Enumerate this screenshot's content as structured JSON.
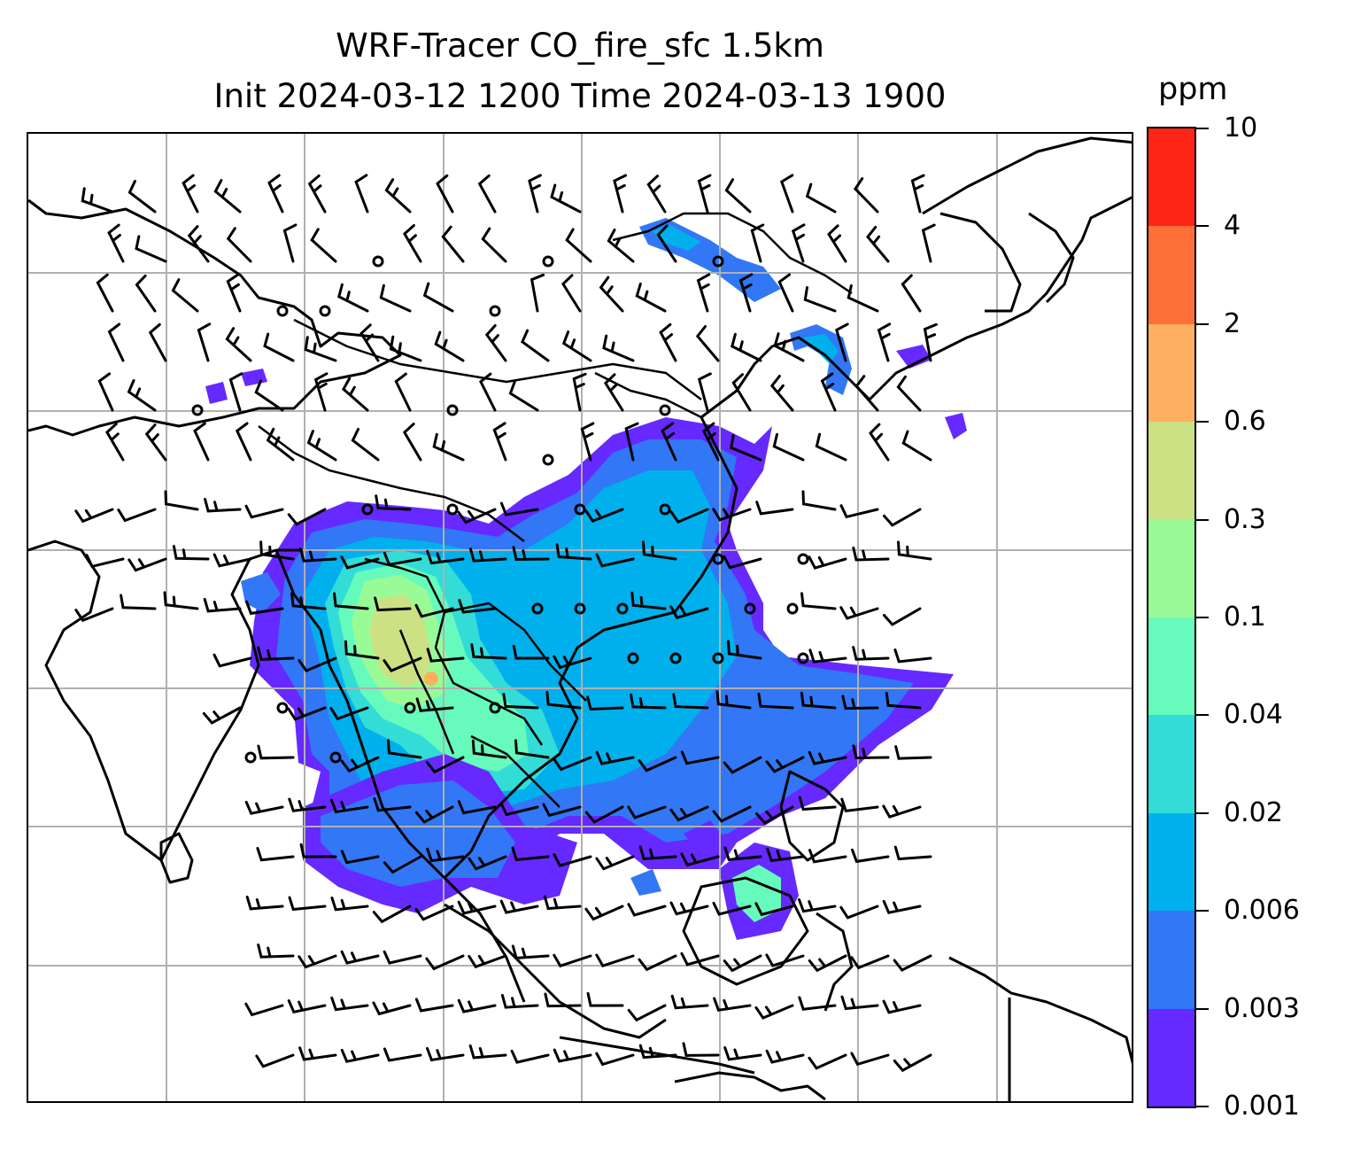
{
  "title": {
    "line1": "WRF-Tracer CO_fire_sfc 1.5km",
    "line2": "Init 2024-03-12 1200 Time 2024-03-13 1900"
  },
  "colorbar": {
    "unit": "ppm",
    "ticks": [
      "0.001",
      "0.003",
      "0.006",
      "0.02",
      "0.04",
      "0.1",
      "0.3",
      "0.6",
      "2",
      "4",
      "10"
    ],
    "colors": [
      "#6629ff",
      "#3277f5",
      "#00b0ec",
      "#33dcd6",
      "#66fbbd",
      "#99fb96",
      "#cbe183",
      "#feb060",
      "#ff7038",
      "#ff2617"
    ]
  },
  "map": {
    "gridlines": "on",
    "gridline_color": "#b0b0b0",
    "coastline_color": "#000000",
    "features": [
      "coastlines",
      "country-borders",
      "wind-barbs",
      "calm-wind-circles",
      "CO-fire-tracer-filled-contours"
    ]
  }
}
